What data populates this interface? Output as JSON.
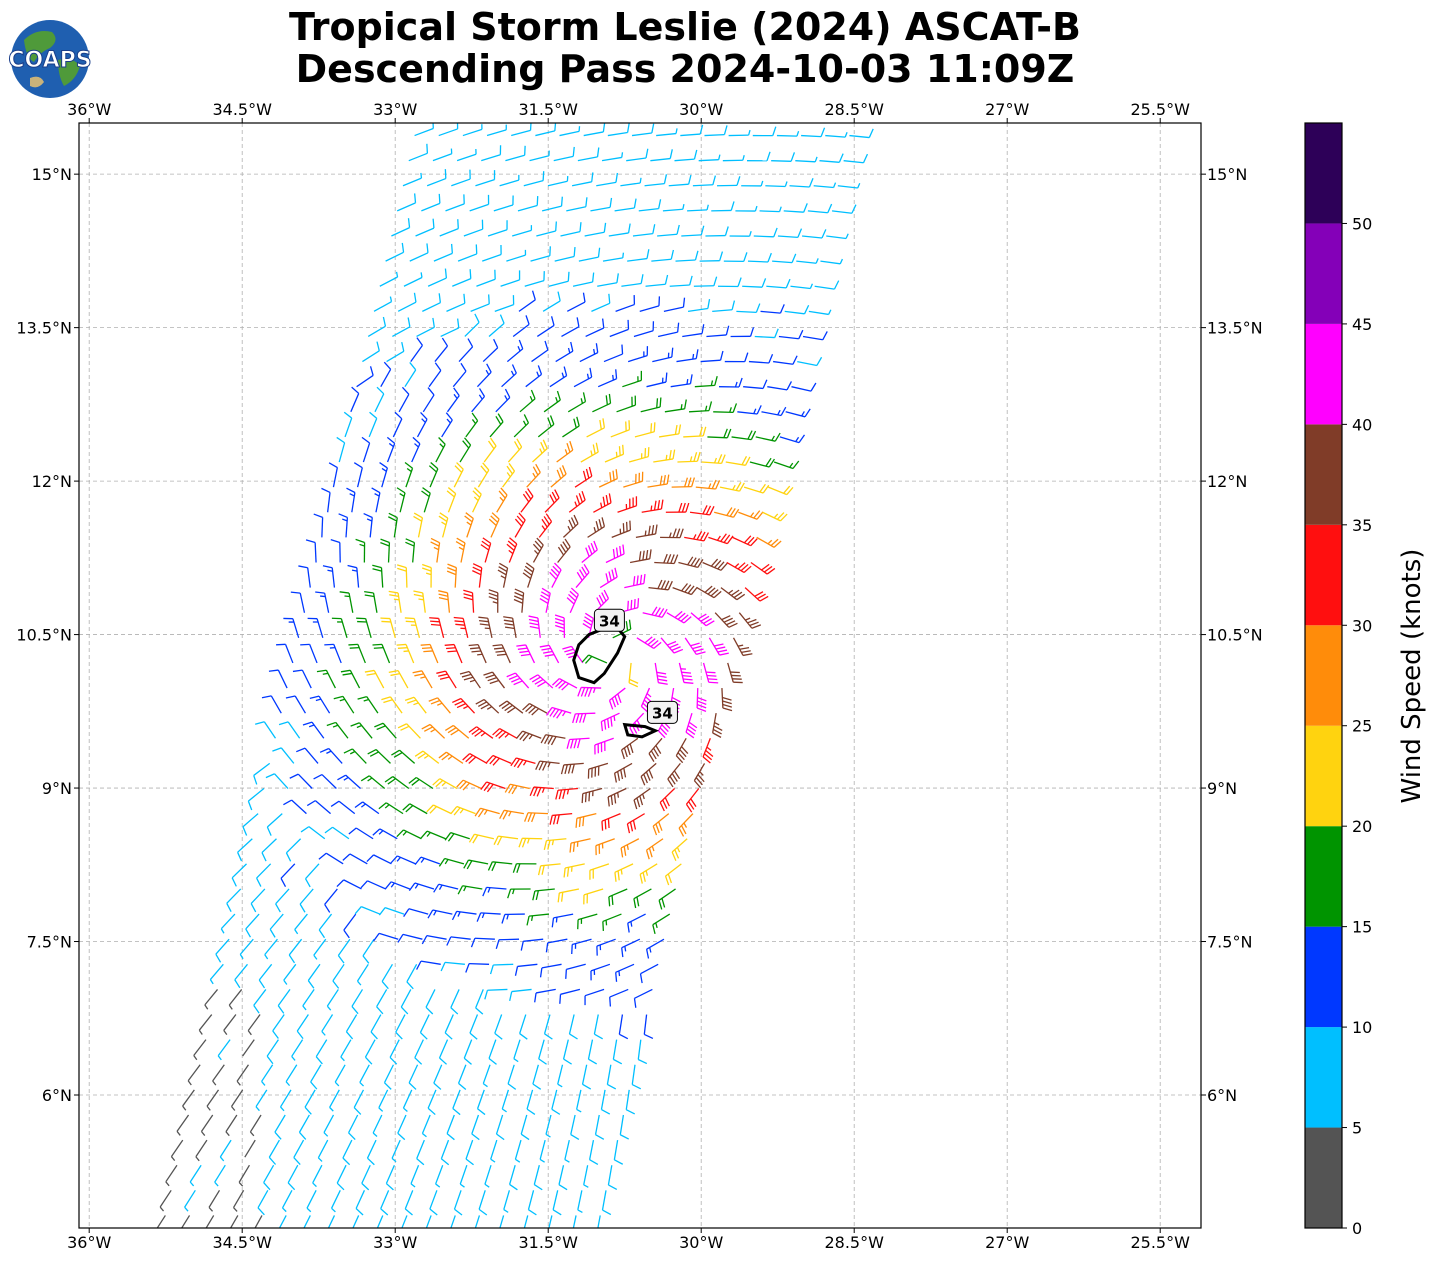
{
  "title": {
    "line1": "Tropical Storm Leslie (2024) ASCAT-B",
    "line2": "Descending Pass 2024-10-03 11:09Z"
  },
  "logo": {
    "text": "COAPS",
    "icon": "globe-logo-icon"
  },
  "map": {
    "lon_range": [
      -36.1,
      -25.1
    ],
    "lat_range": [
      4.7,
      15.5
    ],
    "lon_ticks": [
      {
        "value": -36.0,
        "label": "36°W"
      },
      {
        "value": -34.5,
        "label": "34.5°W"
      },
      {
        "value": -33.0,
        "label": "33°W"
      },
      {
        "value": -31.5,
        "label": "31.5°W"
      },
      {
        "value": -30.0,
        "label": "30°W"
      },
      {
        "value": -28.5,
        "label": "28.5°W"
      },
      {
        "value": -27.0,
        "label": "27°W"
      },
      {
        "value": -25.5,
        "label": "25.5°W"
      }
    ],
    "lat_ticks": [
      {
        "value": 15.0,
        "label": "15°N"
      },
      {
        "value": 13.5,
        "label": "13.5°N"
      },
      {
        "value": 12.0,
        "label": "12°N"
      },
      {
        "value": 10.5,
        "label": "10.5°N"
      },
      {
        "value": 9.0,
        "label": "9°N"
      },
      {
        "value": 7.5,
        "label": "7.5°N"
      },
      {
        "value": 6.0,
        "label": "6°N"
      }
    ],
    "grid": true,
    "swath": {
      "corners": [
        [
          -32.9,
          15.5
        ],
        [
          -28.4,
          15.5
        ],
        [
          -30.9,
          4.7
        ],
        [
          -35.4,
          4.7
        ]
      ]
    },
    "storm_center": {
      "lon": -30.85,
      "lat": 10.3
    },
    "contours": [
      {
        "label": "34",
        "label_lon": -30.9,
        "label_lat": 10.63,
        "path": [
          [
            -31.1,
            10.5
          ],
          [
            -30.85,
            10.6
          ],
          [
            -30.75,
            10.48
          ],
          [
            -30.82,
            10.32
          ],
          [
            -30.95,
            10.12
          ],
          [
            -31.05,
            10.03
          ],
          [
            -31.2,
            10.08
          ],
          [
            -31.25,
            10.25
          ],
          [
            -31.2,
            10.4
          ]
        ]
      },
      {
        "label": "34",
        "label_lon": -30.38,
        "label_lat": 9.73,
        "path": [
          [
            -30.75,
            9.62
          ],
          [
            -30.55,
            9.6
          ],
          [
            -30.45,
            9.56
          ],
          [
            -30.58,
            9.5
          ],
          [
            -30.72,
            9.52
          ]
        ]
      }
    ]
  },
  "colorbar": {
    "label": "Wind Speed (knots)",
    "range": [
      0,
      55
    ],
    "ticks": [
      0,
      5,
      10,
      15,
      20,
      25,
      30,
      35,
      40,
      45,
      50
    ],
    "bins": [
      {
        "min": 0,
        "max": 5,
        "color": "#545454"
      },
      {
        "min": 5,
        "max": 10,
        "color": "#00bfff"
      },
      {
        "min": 10,
        "max": 15,
        "color": "#0038ff"
      },
      {
        "min": 15,
        "max": 20,
        "color": "#009400"
      },
      {
        "min": 20,
        "max": 25,
        "color": "#ffd30f"
      },
      {
        "min": 25,
        "max": 30,
        "color": "#ff8c0a"
      },
      {
        "min": 30,
        "max": 35,
        "color": "#ff0f0f"
      },
      {
        "min": 35,
        "max": 40,
        "color": "#803c28"
      },
      {
        "min": 40,
        "max": 45,
        "color": "#ff00ff"
      },
      {
        "min": 45,
        "max": 50,
        "color": "#8400b8"
      },
      {
        "min": 50,
        "max": 55,
        "color": "#2d0058"
      }
    ]
  }
}
